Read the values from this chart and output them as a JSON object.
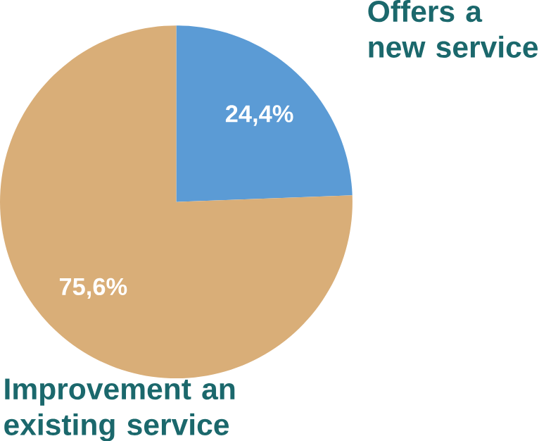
{
  "chart_data": {
    "type": "pie",
    "categories": [
      "Offers a new service",
      "Improvement an existing service"
    ],
    "values": [
      24.4,
      75.6
    ],
    "colors": [
      "#5b9bd5",
      "#d9ae78"
    ],
    "value_labels": [
      "24,4%",
      "75,6%"
    ]
  }
}
